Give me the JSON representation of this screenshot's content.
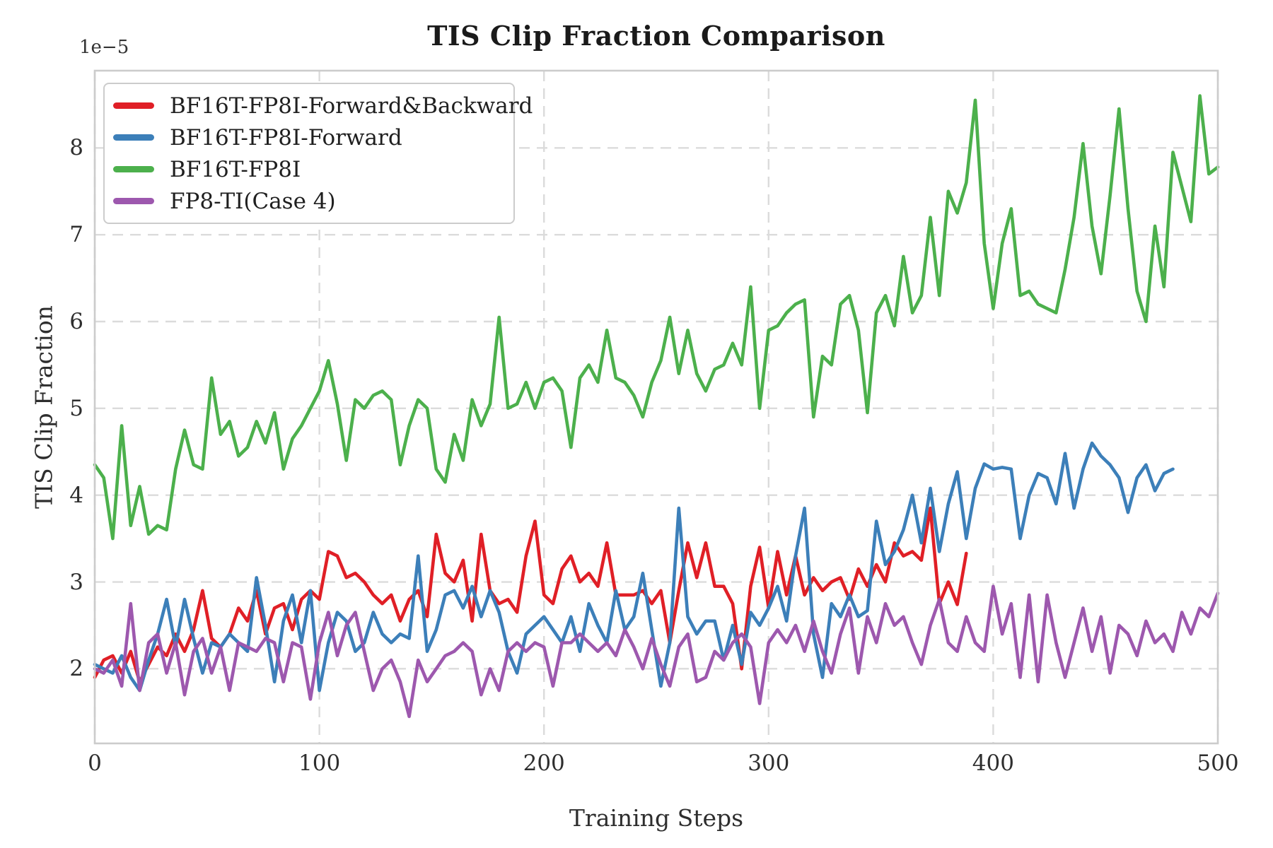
{
  "chart_data": {
    "type": "line",
    "title": "TIS Clip Fraction Comparison",
    "xlabel": "Training Steps",
    "ylabel": "TIS Clip Fraction",
    "y_offset_text": "1e−5",
    "y_value_unit": "1e-5",
    "grid": true,
    "legend_position": "upper-left",
    "xlim": [
      0,
      500
    ],
    "ylim_e5": [
      1.14,
      8.89
    ],
    "x_ticks": [
      "0",
      "100",
      "200",
      "300",
      "400",
      "500"
    ],
    "y_ticks": [
      "2",
      "3",
      "4",
      "5",
      "6",
      "7",
      "8"
    ],
    "series": [
      {
        "name": "BF16T-FP8I-Forward&Backward",
        "color": "#e01f26",
        "x_start": 0,
        "x_step": 4,
        "values_e5": [
          1.9,
          2.1,
          2.15,
          1.95,
          2.2,
          1.85,
          2.05,
          2.25,
          2.15,
          2.4,
          2.2,
          2.45,
          2.9,
          2.35,
          2.25,
          2.4,
          2.7,
          2.55,
          2.9,
          2.4,
          2.7,
          2.75,
          2.45,
          2.8,
          2.9,
          2.8,
          3.35,
          3.3,
          3.05,
          3.1,
          3.0,
          2.85,
          2.75,
          2.85,
          2.55,
          2.8,
          2.9,
          2.6,
          3.55,
          3.1,
          3.0,
          3.25,
          2.55,
          3.55,
          2.9,
          2.75,
          2.8,
          2.65,
          3.3,
          3.7,
          2.85,
          2.75,
          3.15,
          3.3,
          3.0,
          3.1,
          2.95,
          3.45,
          2.85,
          2.85,
          2.85,
          2.9,
          2.75,
          2.9,
          2.3,
          2.9,
          3.45,
          3.05,
          3.45,
          2.95,
          2.95,
          2.75,
          2.0,
          2.95,
          3.4,
          2.7,
          3.35,
          2.85,
          3.3,
          2.85,
          3.05,
          2.9,
          3.0,
          3.05,
          2.8,
          3.15,
          2.95,
          3.2,
          3.0,
          3.45,
          3.3,
          3.35,
          3.25,
          3.85,
          2.75,
          3.0,
          2.74,
          3.33
        ]
      },
      {
        "name": "BF16T-FP8I-Forward",
        "color": "#3c7fb9",
        "x_start": 0,
        "x_step": 4,
        "values_e5": [
          2.05,
          2.0,
          1.95,
          2.15,
          1.9,
          1.75,
          2.1,
          2.4,
          2.8,
          2.25,
          2.8,
          2.35,
          1.95,
          2.3,
          2.25,
          2.4,
          2.3,
          2.2,
          3.05,
          2.5,
          1.85,
          2.55,
          2.85,
          2.3,
          2.9,
          1.75,
          2.3,
          2.65,
          2.55,
          2.2,
          2.3,
          2.65,
          2.4,
          2.3,
          2.4,
          2.35,
          3.3,
          2.2,
          2.45,
          2.85,
          2.9,
          2.7,
          2.95,
          2.6,
          2.9,
          2.65,
          2.2,
          1.95,
          2.4,
          2.5,
          2.6,
          2.45,
          2.3,
          2.6,
          2.2,
          2.75,
          2.5,
          2.3,
          2.9,
          2.45,
          2.6,
          3.1,
          2.45,
          1.8,
          2.3,
          3.85,
          2.6,
          2.4,
          2.55,
          2.55,
          2.1,
          2.5,
          2.05,
          2.65,
          2.5,
          2.7,
          2.95,
          2.55,
          3.3,
          3.85,
          2.4,
          1.9,
          2.75,
          2.6,
          2.85,
          2.6,
          2.67,
          3.7,
          3.2,
          3.35,
          3.6,
          4.0,
          3.45,
          4.08,
          3.35,
          3.9,
          4.27,
          3.5,
          4.08,
          4.36,
          4.3,
          4.32,
          4.3,
          3.5,
          4.0,
          4.25,
          4.2,
          3.9,
          4.48,
          3.85,
          4.3,
          4.6,
          4.45,
          4.35,
          4.2,
          3.8,
          4.2,
          4.35,
          4.05,
          4.25,
          4.3
        ]
      },
      {
        "name": "BF16T-FP8I",
        "color": "#4cb04c",
        "x_start": 0,
        "x_step": 4,
        "values_e5": [
          4.35,
          4.2,
          3.5,
          4.8,
          3.65,
          4.1,
          3.55,
          3.65,
          3.6,
          4.3,
          4.75,
          4.35,
          4.3,
          5.35,
          4.7,
          4.85,
          4.45,
          4.55,
          4.85,
          4.6,
          4.95,
          4.3,
          4.65,
          4.8,
          5.0,
          5.2,
          5.55,
          5.05,
          4.4,
          5.1,
          5.0,
          5.15,
          5.2,
          5.1,
          4.35,
          4.8,
          5.1,
          5.0,
          4.3,
          4.15,
          4.7,
          4.4,
          5.1,
          4.8,
          5.05,
          6.05,
          5.0,
          5.05,
          5.3,
          5.0,
          5.3,
          5.35,
          5.2,
          4.55,
          5.35,
          5.5,
          5.3,
          5.9,
          5.35,
          5.3,
          5.15,
          4.9,
          5.3,
          5.55,
          6.05,
          5.4,
          5.9,
          5.4,
          5.2,
          5.45,
          5.5,
          5.75,
          5.5,
          6.4,
          5.0,
          5.9,
          5.95,
          6.1,
          6.2,
          6.25,
          4.9,
          5.6,
          5.5,
          6.2,
          6.3,
          5.9,
          4.95,
          6.1,
          6.3,
          5.95,
          6.75,
          6.1,
          6.3,
          7.2,
          6.3,
          7.5,
          7.25,
          7.6,
          8.55,
          6.9,
          6.15,
          6.9,
          7.3,
          6.3,
          6.35,
          6.2,
          6.15,
          6.1,
          6.6,
          7.2,
          8.05,
          7.1,
          6.55,
          7.45,
          8.45,
          7.3,
          6.35,
          6.0,
          7.1,
          6.4,
          7.95,
          7.55,
          7.15,
          8.6,
          7.7,
          7.78
        ]
      },
      {
        "name": "FP8-TI(Case 4)",
        "color": "#9d58ae",
        "x_start": 0,
        "x_step": 4,
        "values_e5": [
          2.0,
          1.95,
          2.1,
          1.8,
          2.75,
          1.75,
          2.3,
          2.4,
          1.95,
          2.3,
          1.7,
          2.2,
          2.35,
          1.95,
          2.25,
          1.75,
          2.3,
          2.25,
          2.2,
          2.35,
          2.3,
          1.85,
          2.3,
          2.25,
          1.65,
          2.3,
          2.65,
          2.15,
          2.5,
          2.65,
          2.2,
          1.75,
          2.0,
          2.1,
          1.85,
          1.45,
          2.1,
          1.85,
          2.0,
          2.15,
          2.2,
          2.3,
          2.2,
          1.7,
          2.0,
          1.75,
          2.2,
          2.3,
          2.2,
          2.3,
          2.25,
          1.8,
          2.3,
          2.3,
          2.4,
          2.3,
          2.2,
          2.3,
          2.15,
          2.45,
          2.25,
          2.0,
          2.35,
          2.05,
          1.8,
          2.25,
          2.4,
          1.85,
          1.9,
          2.2,
          2.1,
          2.3,
          2.4,
          2.25,
          1.6,
          2.3,
          2.45,
          2.3,
          2.5,
          2.2,
          2.55,
          2.2,
          1.95,
          2.4,
          2.7,
          1.95,
          2.6,
          2.3,
          2.75,
          2.5,
          2.6,
          2.3,
          2.05,
          2.5,
          2.8,
          2.3,
          2.2,
          2.6,
          2.3,
          2.2,
          2.95,
          2.4,
          2.75,
          1.9,
          2.85,
          1.85,
          2.85,
          2.3,
          1.9,
          2.3,
          2.7,
          2.2,
          2.6,
          1.95,
          2.5,
          2.4,
          2.15,
          2.55,
          2.3,
          2.4,
          2.2,
          2.65,
          2.4,
          2.7,
          2.6,
          2.87
        ]
      }
    ]
  }
}
